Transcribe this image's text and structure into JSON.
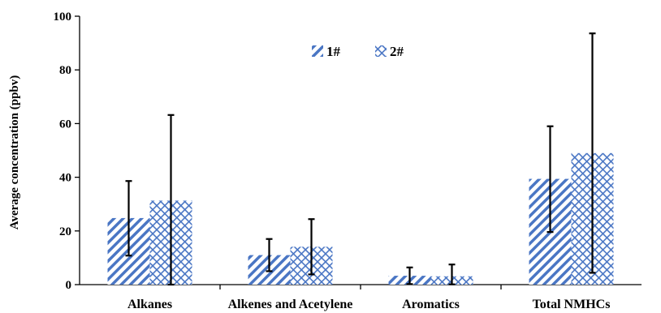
{
  "chart_data": {
    "type": "bar",
    "ylabel": "Average concentration  (ppbv)",
    "ylim": [
      0,
      100
    ],
    "yticks": [
      0,
      20,
      40,
      60,
      80,
      100
    ],
    "categories": [
      "Alkanes",
      "Alkenes and Acetylene",
      "Aromatics",
      "Total NMHCs"
    ],
    "series": [
      {
        "name": "1#",
        "color": "#4a76c4",
        "pattern": "diagonal-hatch",
        "values": [
          24.8,
          11.0,
          3.3,
          39.4
        ],
        "error_low": [
          10.8,
          5.0,
          0.2,
          19.6
        ],
        "error_high": [
          38.6,
          17.0,
          6.4,
          59.0
        ]
      },
      {
        "name": "2#",
        "color": "#4a76c4",
        "pattern": "cross-hatch",
        "values": [
          31.3,
          14.1,
          3.1,
          49.0
        ],
        "error_low": [
          0,
          3.8,
          0.1,
          4.4
        ],
        "error_high": [
          63.2,
          24.4,
          7.5,
          93.6
        ]
      }
    ],
    "legend": {
      "position": "top-center",
      "orientation": "horizontal"
    },
    "grid": false
  }
}
